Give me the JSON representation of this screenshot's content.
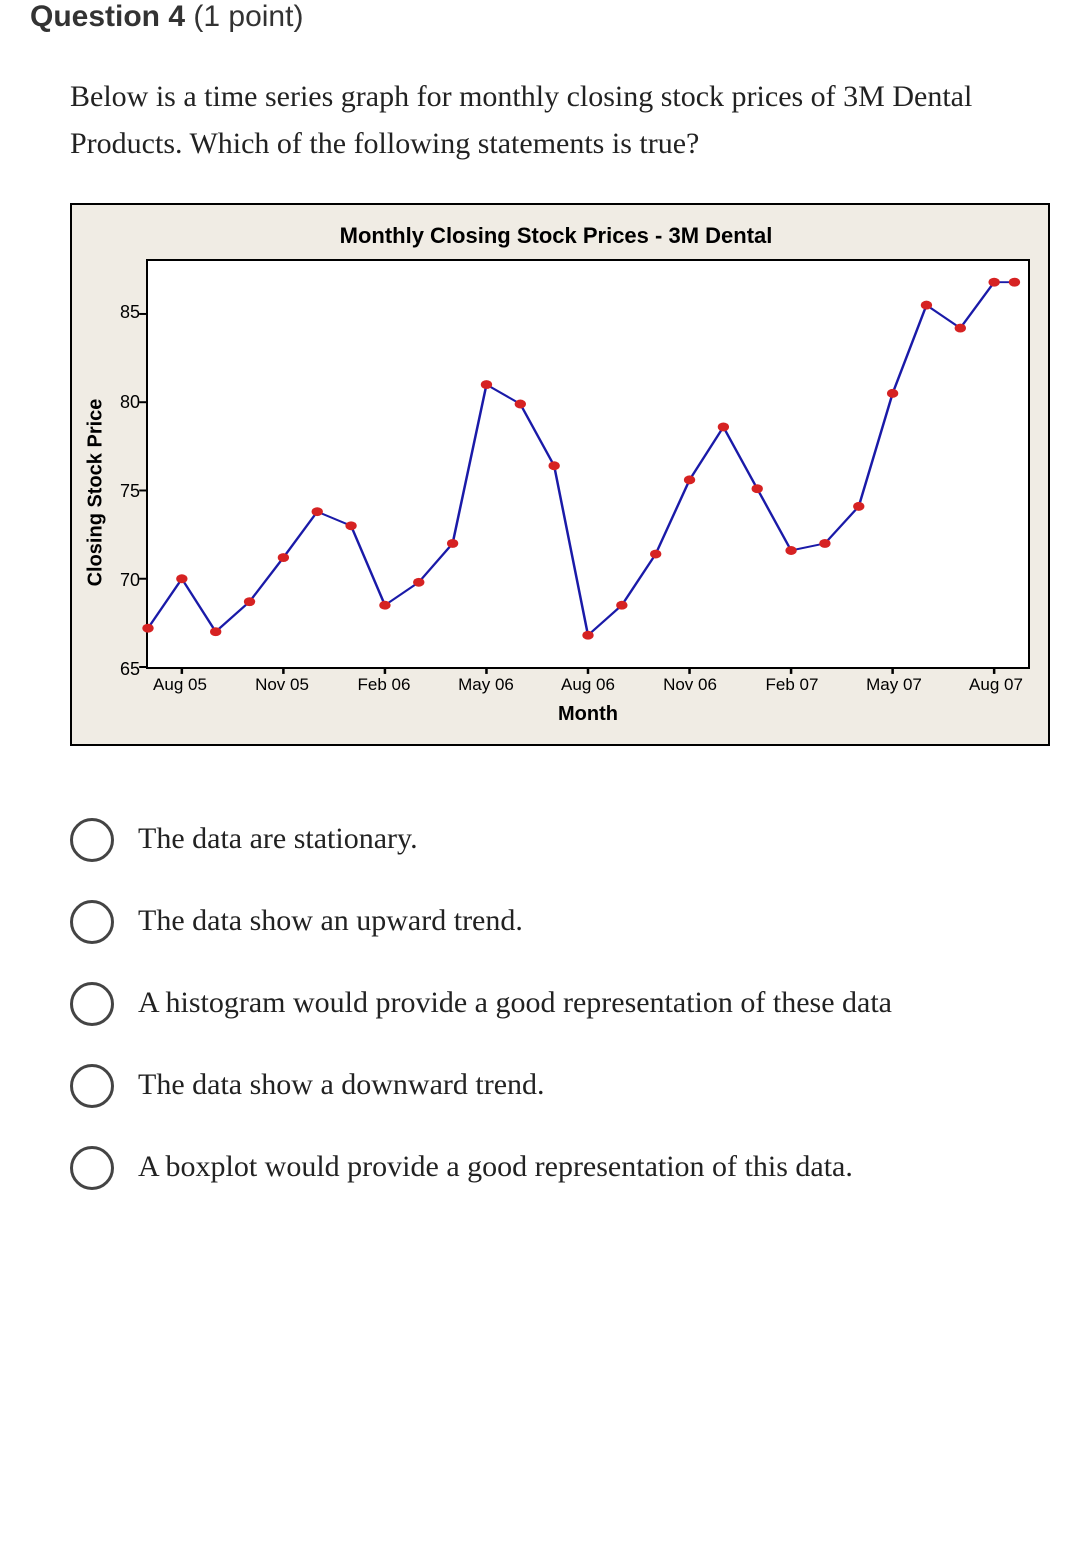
{
  "header": {
    "question_label": "Question 4",
    "points_label": "(1 point)"
  },
  "prompt": "Below is a time series graph for monthly closing stock prices of 3M Dental Products. Which of the following statements is true?",
  "chart": {
    "type": "line-scatter",
    "title": "Monthly Closing Stock Prices - 3M Dental",
    "title_fontsize": 22,
    "xlabel": "Month",
    "ylabel": "Closing Stock Price",
    "label_fontsize": 20,
    "tick_fontsize": 18,
    "ylim": [
      65,
      88
    ],
    "yticks": [
      65,
      70,
      75,
      80,
      85
    ],
    "xlim": [
      0,
      26
    ],
    "xtick_positions": [
      1,
      4,
      7,
      10,
      13,
      16,
      19,
      22,
      25
    ],
    "xtick_labels": [
      "Aug 05",
      "Nov 05",
      "Feb 06",
      "May 06",
      "Aug 06",
      "Nov 06",
      "Feb 07",
      "May 07",
      "Aug 07"
    ],
    "x": [
      0,
      1,
      2,
      3,
      4,
      5,
      6,
      7,
      8,
      9,
      10,
      11,
      12,
      13,
      14,
      15,
      16,
      17,
      18,
      19,
      20,
      21,
      22,
      23,
      24,
      25
    ],
    "y": [
      67.2,
      70.0,
      67.0,
      68.7,
      71.2,
      73.8,
      73.0,
      68.5,
      69.8,
      72.0,
      81.0,
      79.9,
      76.4,
      66.8,
      68.5,
      71.4,
      75.6,
      78.6,
      75.1,
      71.6,
      72.0,
      74.1,
      80.5,
      85.5,
      84.2,
      86.8
    ],
    "extra_x": [
      25.6
    ],
    "extra_y": [
      86.8
    ],
    "line_color": "#1a1aa8",
    "marker_color": "#d62222",
    "marker_radius": 4.5,
    "line_width": 2,
    "background_color": "#ffffff",
    "frame_color": "#000000",
    "outer_background": "#f0ece4",
    "tick_length": 7
  },
  "options": [
    {
      "label": "The data are stationary."
    },
    {
      "label": "The data show an upward trend."
    },
    {
      "label": "A histogram would provide a good representation of these data"
    },
    {
      "label": "The data show a downward trend."
    },
    {
      "label": "A boxplot would provide a good representation of this data."
    }
  ]
}
